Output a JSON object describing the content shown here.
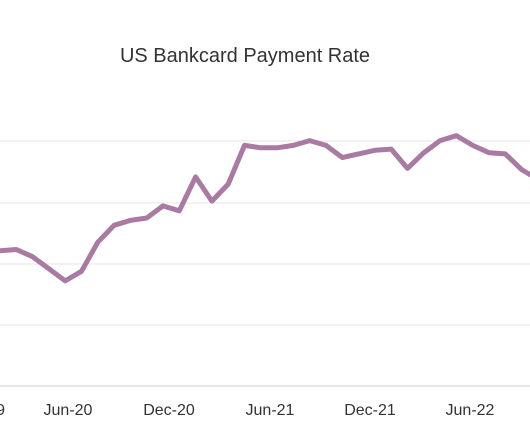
{
  "chart_data": {
    "type": "line",
    "title": "US Bankcard Payment Rate",
    "xlabel": "",
    "ylabel": "",
    "x_tick_labels": [
      "Jun-20",
      "Dec-20",
      "Jun-21",
      "Dec-21",
      "Jun-22"
    ],
    "series": [
      {
        "color": "#a97ba2",
        "values": [
          0.55,
          0.6,
          0.3,
          -0.2,
          -0.7,
          -0.3,
          0.9,
          1.6,
          1.8,
          1.9,
          2.4,
          2.2,
          3.6,
          2.6,
          3.3,
          4.9,
          4.8,
          4.8,
          4.9,
          5.1,
          4.9,
          4.4,
          4.55,
          4.7,
          4.75,
          3.95,
          4.6,
          5.1,
          5.3,
          4.9,
          4.6,
          4.55,
          3.9,
          3.5
        ]
      }
    ],
    "grid": true,
    "legend": "none",
    "colors": {
      "line": "#a97ba2",
      "grid": "#e6e6e6",
      "axis": "#cfcfcf",
      "text": "#333333"
    }
  }
}
